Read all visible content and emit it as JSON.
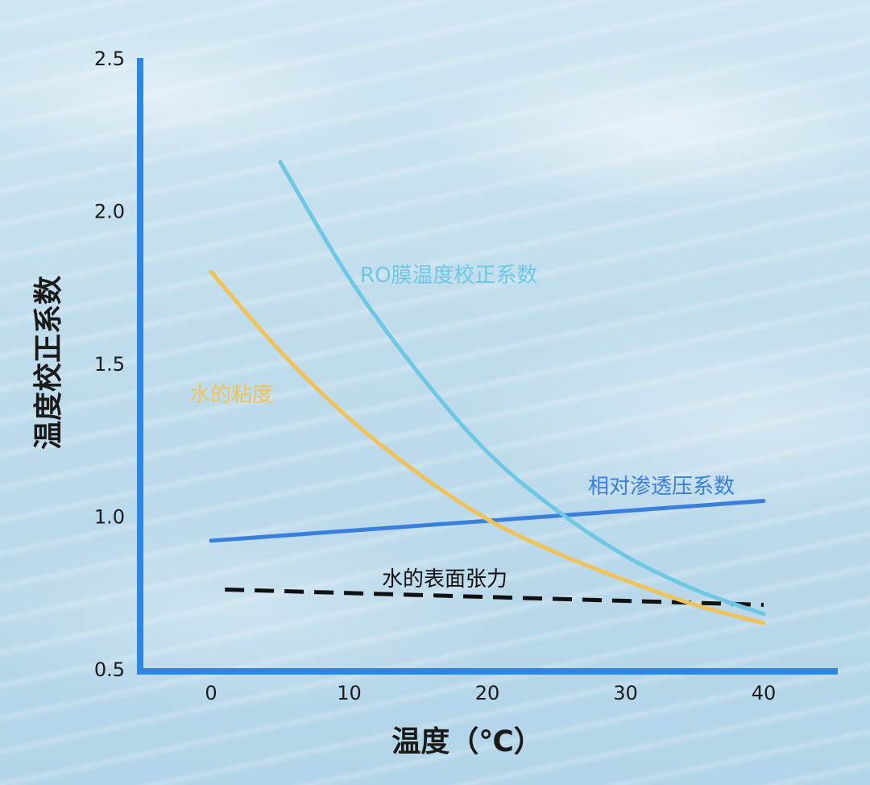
{
  "chart_data": {
    "type": "line",
    "title": "",
    "xlabel": "温度（℃）",
    "ylabel": "温度校正系数",
    "xlim": [
      -5,
      45
    ],
    "ylim": [
      0.5,
      2.5
    ],
    "x_ticks": [
      "0",
      "10",
      "20",
      "30",
      "40"
    ],
    "y_ticks": [
      "0.5",
      "1.0",
      "1.5",
      "2.0",
      "2.5"
    ],
    "grid": false,
    "colors": {
      "axis": "#2f86e0",
      "ro_membrane": "#6ec8e4",
      "water_viscosity": "#f0c25a",
      "osmotic_pressure": "#3a7fdc",
      "surface_tension": "#111111"
    },
    "series": [
      {
        "name": "RO膜温度校正系数",
        "style": "solid",
        "x": [
          5,
          10,
          15,
          20,
          25,
          30,
          35,
          40
        ],
        "y": [
          2.16,
          1.78,
          1.47,
          1.21,
          1.02,
          0.87,
          0.76,
          0.68
        ]
      },
      {
        "name": "水的粘度",
        "style": "solid",
        "x": [
          0,
          5,
          10,
          15,
          20,
          25,
          30,
          35,
          40
        ],
        "y": [
          1.8,
          1.54,
          1.32,
          1.14,
          0.99,
          0.88,
          0.79,
          0.71,
          0.65
        ]
      },
      {
        "name": "相对渗透压系数",
        "style": "solid",
        "x": [
          0,
          40
        ],
        "y": [
          0.92,
          1.05
        ]
      },
      {
        "name": "水的表面张力",
        "style": "dashed",
        "x": [
          1,
          40
        ],
        "y": [
          0.76,
          0.71
        ]
      }
    ]
  }
}
